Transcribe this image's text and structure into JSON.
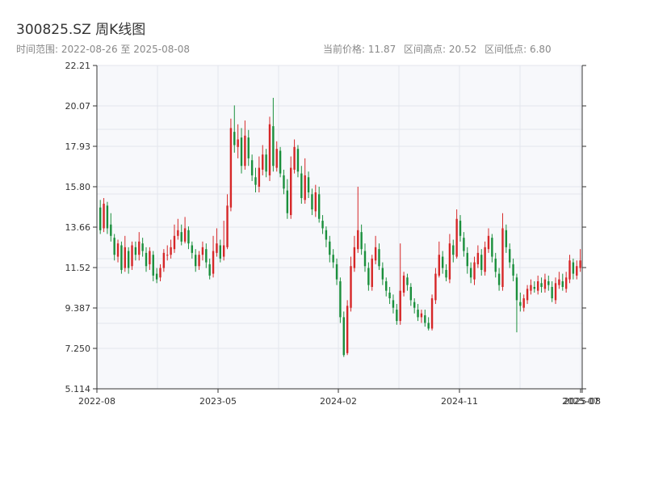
{
  "title": "300825.SZ 周K线图",
  "range_label": "时间范围: 2022-08-26 至 2025-08-08",
  "current_label": "当前价格: 11.87",
  "high_label": "区间高点: 20.52",
  "low_label": "区间低点: 6.80",
  "colors": {
    "up": "#d62728",
    "down": "#1a8f3c",
    "plot_bg": "#f7f8fb",
    "grid": "#e3e6ec"
  },
  "chart_data": {
    "type": "candlestick",
    "ylim": [
      5.114,
      22.21
    ],
    "yticks": [
      "22.21",
      "20.07",
      "17.93",
      "15.80",
      "13.66",
      "11.52",
      "9.387",
      "7.250",
      "5.114"
    ],
    "xticks": [
      "2022-08",
      "2023-05",
      "2024-02",
      "2024-11",
      "2025-07",
      "2025-08"
    ],
    "high": 20.52,
    "low": 6.8,
    "current": 11.87,
    "candles": [
      [
        1,
        14.7,
        13.5,
        15.1,
        13.3
      ],
      [
        2,
        13.6,
        14.9,
        15.2,
        13.4
      ],
      [
        3,
        14.8,
        13.6,
        15.0,
        13.3
      ],
      [
        4,
        13.8,
        13.2,
        14.4,
        12.9
      ],
      [
        5,
        13.1,
        12.2,
        13.3,
        11.9
      ],
      [
        6,
        12.1,
        12.8,
        13.0,
        11.8
      ],
      [
        7,
        12.7,
        11.4,
        12.9,
        11.2
      ],
      [
        8,
        11.5,
        12.6,
        13.2,
        11.3
      ],
      [
        9,
        12.4,
        11.5,
        12.6,
        11.2
      ],
      [
        10,
        11.6,
        12.7,
        12.9,
        11.4
      ],
      [
        11,
        12.6,
        12.2,
        12.9,
        11.9
      ],
      [
        12,
        12.2,
        12.9,
        13.4,
        11.9
      ],
      [
        13,
        12.8,
        12.4,
        13.1,
        12.1
      ],
      [
        14,
        12.3,
        11.6,
        12.6,
        11.3
      ],
      [
        15,
        11.7,
        12.4,
        12.6,
        11.4
      ],
      [
        16,
        12.2,
        11.1,
        12.4,
        10.8
      ],
      [
        17,
        11.2,
        10.9,
        11.5,
        10.7
      ],
      [
        18,
        11.0,
        11.5,
        11.7,
        10.8
      ],
      [
        19,
        11.5,
        12.3,
        12.5,
        11.3
      ],
      [
        20,
        12.2,
        12.2,
        12.7,
        11.9
      ],
      [
        21,
        12.2,
        12.6,
        13.0,
        12.0
      ],
      [
        22,
        12.5,
        13.2,
        13.8,
        12.3
      ],
      [
        23,
        13.2,
        13.5,
        14.1,
        13.0
      ],
      [
        24,
        13.4,
        12.9,
        13.8,
        12.7
      ],
      [
        25,
        12.9,
        13.6,
        14.2,
        12.8
      ],
      [
        26,
        13.5,
        12.8,
        13.7,
        12.5
      ],
      [
        27,
        12.7,
        12.3,
        12.9,
        12.0
      ],
      [
        28,
        12.2,
        11.6,
        12.5,
        11.3
      ],
      [
        29,
        11.6,
        12.2,
        12.4,
        11.4
      ],
      [
        30,
        12.2,
        12.6,
        12.9,
        11.9
      ],
      [
        31,
        12.5,
        11.8,
        12.8,
        11.5
      ],
      [
        32,
        11.7,
        11.1,
        12.0,
        10.9
      ],
      [
        33,
        11.2,
        12.4,
        13.2,
        11.0
      ],
      [
        34,
        12.3,
        12.8,
        13.6,
        12.1
      ],
      [
        35,
        12.7,
        12.0,
        13.0,
        11.8
      ],
      [
        36,
        12.1,
        12.7,
        14.0,
        11.9
      ],
      [
        37,
        12.6,
        14.8,
        15.4,
        12.5
      ],
      [
        38,
        14.7,
        18.9,
        19.4,
        14.5
      ],
      [
        39,
        18.7,
        18.0,
        20.1,
        17.6
      ],
      [
        40,
        17.9,
        18.3,
        19.1,
        17.3
      ],
      [
        41,
        18.4,
        16.9,
        18.9,
        16.5
      ],
      [
        42,
        16.9,
        18.5,
        19.3,
        16.7
      ],
      [
        43,
        18.4,
        17.3,
        18.8,
        16.9
      ],
      [
        44,
        17.2,
        16.4,
        17.5,
        16.1
      ],
      [
        45,
        16.3,
        15.9,
        16.8,
        15.5
      ],
      [
        46,
        15.8,
        16.8,
        17.4,
        15.5
      ],
      [
        47,
        16.7,
        17.5,
        18.0,
        16.4
      ],
      [
        48,
        17.5,
        16.6,
        17.8,
        16.3
      ],
      [
        49,
        16.4,
        19.1,
        19.5,
        16.1
      ],
      [
        50,
        19.0,
        16.9,
        20.5,
        16.6
      ],
      [
        51,
        16.8,
        17.8,
        18.2,
        16.6
      ],
      [
        52,
        17.7,
        16.5,
        17.9,
        16.3
      ],
      [
        53,
        16.4,
        15.7,
        16.7,
        15.4
      ],
      [
        54,
        15.6,
        14.4,
        16.2,
        14.1
      ],
      [
        55,
        14.3,
        16.8,
        17.4,
        14.1
      ],
      [
        56,
        16.7,
        17.9,
        18.3,
        16.5
      ],
      [
        57,
        17.8,
        16.6,
        18.0,
        16.3
      ],
      [
        58,
        16.5,
        15.2,
        16.9,
        14.9
      ],
      [
        59,
        15.1,
        16.4,
        17.3,
        14.9
      ],
      [
        60,
        16.3,
        15.5,
        16.6,
        15.2
      ],
      [
        61,
        15.4,
        14.6,
        15.7,
        14.3
      ],
      [
        62,
        14.5,
        15.5,
        15.9,
        14.2
      ],
      [
        63,
        15.4,
        14.1,
        15.8,
        13.9
      ],
      [
        64,
        14.0,
        13.6,
        14.3,
        13.3
      ],
      [
        65,
        13.5,
        13.0,
        13.7,
        12.6
      ],
      [
        66,
        12.9,
        12.2,
        13.2,
        11.8
      ],
      [
        67,
        12.2,
        11.8,
        12.5,
        11.5
      ],
      [
        68,
        11.7,
        10.9,
        12.0,
        10.6
      ],
      [
        69,
        10.8,
        8.9,
        11.0,
        8.6
      ],
      [
        70,
        8.9,
        6.9,
        9.2,
        6.8
      ],
      [
        71,
        7.0,
        9.5,
        9.8,
        6.9
      ],
      [
        72,
        9.4,
        11.6,
        12.1,
        9.2
      ],
      [
        73,
        11.5,
        12.6,
        13.2,
        11.3
      ],
      [
        74,
        12.5,
        13.5,
        15.8,
        12.3
      ],
      [
        75,
        13.4,
        12.5,
        13.8,
        12.2
      ],
      [
        76,
        12.4,
        11.6,
        12.8,
        11.3
      ],
      [
        77,
        11.5,
        10.6,
        11.8,
        10.3
      ],
      [
        78,
        10.5,
        12.0,
        12.2,
        10.3
      ],
      [
        79,
        11.9,
        12.6,
        13.2,
        11.7
      ],
      [
        80,
        12.5,
        11.6,
        12.8,
        11.4
      ],
      [
        81,
        11.5,
        10.9,
        11.8,
        10.6
      ],
      [
        82,
        10.8,
        10.3,
        11.0,
        10.0
      ],
      [
        83,
        10.2,
        9.9,
        10.5,
        9.6
      ],
      [
        84,
        9.8,
        9.4,
        10.1,
        9.1
      ],
      [
        85,
        9.3,
        8.7,
        9.6,
        8.5
      ],
      [
        86,
        8.7,
        10.3,
        12.8,
        8.5
      ],
      [
        87,
        10.2,
        11.1,
        11.3,
        10.0
      ],
      [
        88,
        11.0,
        10.6,
        11.2,
        10.3
      ],
      [
        89,
        10.5,
        9.8,
        10.7,
        9.5
      ],
      [
        90,
        9.7,
        9.4,
        9.9,
        9.1
      ],
      [
        91,
        9.3,
        8.9,
        9.6,
        8.7
      ],
      [
        92,
        8.9,
        9.1,
        9.3,
        8.6
      ],
      [
        93,
        9.0,
        8.6,
        9.3,
        8.4
      ],
      [
        94,
        8.6,
        8.3,
        8.9,
        8.2
      ],
      [
        95,
        8.3,
        9.9,
        10.1,
        8.2
      ],
      [
        96,
        9.8,
        11.2,
        11.5,
        9.6
      ],
      [
        97,
        11.1,
        12.2,
        12.9,
        11.0
      ],
      [
        98,
        12.1,
        11.5,
        12.4,
        11.2
      ],
      [
        99,
        11.4,
        11.0,
        11.7,
        10.8
      ],
      [
        100,
        10.9,
        12.8,
        13.3,
        10.7
      ],
      [
        101,
        12.7,
        12.2,
        13.0,
        11.8
      ],
      [
        102,
        12.1,
        14.1,
        14.6,
        12.0
      ],
      [
        103,
        14.0,
        13.2,
        14.3,
        12.9
      ],
      [
        104,
        13.1,
        12.4,
        13.4,
        12.1
      ],
      [
        105,
        12.3,
        11.6,
        12.6,
        11.2
      ],
      [
        106,
        11.5,
        11.0,
        11.8,
        10.7
      ],
      [
        107,
        10.9,
        11.8,
        12.1,
        10.6
      ],
      [
        108,
        11.7,
        12.3,
        12.7,
        11.5
      ],
      [
        109,
        12.2,
        11.4,
        12.5,
        11.1
      ],
      [
        110,
        11.3,
        12.6,
        12.9,
        11.1
      ],
      [
        111,
        12.5,
        13.2,
        13.6,
        12.3
      ],
      [
        112,
        13.1,
        12.1,
        13.3,
        11.8
      ],
      [
        113,
        12.0,
        11.3,
        12.3,
        11.0
      ],
      [
        114,
        11.2,
        10.6,
        11.5,
        10.3
      ],
      [
        115,
        10.5,
        13.6,
        14.4,
        10.3
      ],
      [
        116,
        13.5,
        12.6,
        13.8,
        12.3
      ],
      [
        117,
        12.5,
        11.8,
        12.8,
        11.5
      ],
      [
        118,
        11.7,
        11.1,
        12.0,
        10.8
      ],
      [
        119,
        11.0,
        9.8,
        11.2,
        8.1
      ],
      [
        120,
        9.7,
        9.5,
        10.2,
        9.2
      ],
      [
        121,
        9.4,
        9.9,
        10.1,
        9.2
      ],
      [
        122,
        9.8,
        10.4,
        10.6,
        9.6
      ],
      [
        123,
        10.3,
        10.6,
        10.9,
        10.1
      ],
      [
        124,
        10.5,
        10.4,
        10.8,
        10.2
      ],
      [
        125,
        10.3,
        10.8,
        11.1,
        10.1
      ],
      [
        126,
        10.7,
        10.5,
        11.0,
        10.2
      ],
      [
        127,
        10.4,
        10.9,
        11.2,
        10.2
      ],
      [
        128,
        10.8,
        10.6,
        11.1,
        10.3
      ],
      [
        129,
        10.5,
        9.9,
        10.8,
        9.7
      ],
      [
        130,
        9.8,
        10.7,
        11.0,
        9.6
      ],
      [
        131,
        10.6,
        10.9,
        11.3,
        10.4
      ],
      [
        132,
        10.8,
        10.5,
        11.2,
        10.3
      ],
      [
        133,
        10.4,
        11.0,
        11.3,
        10.2
      ],
      [
        134,
        10.9,
        11.9,
        12.2,
        10.7
      ],
      [
        135,
        11.8,
        11.2,
        12.0,
        10.9
      ],
      [
        136,
        11.1,
        11.6,
        11.9,
        10.9
      ],
      [
        137,
        11.5,
        11.9,
        12.5,
        11.3
      ]
    ]
  }
}
